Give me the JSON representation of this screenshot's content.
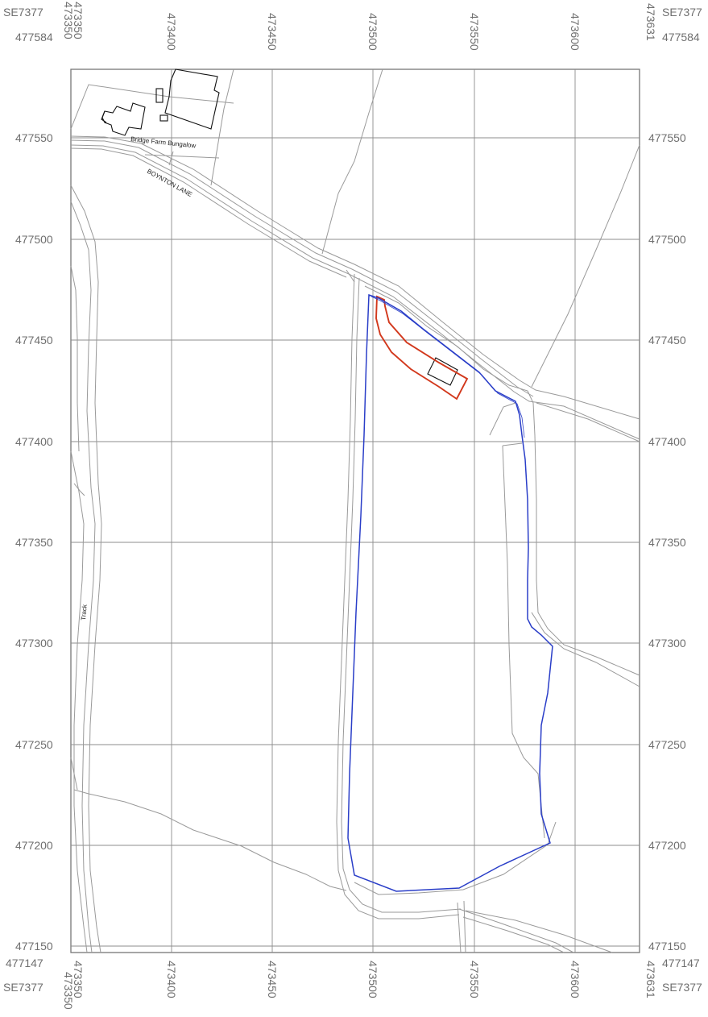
{
  "map": {
    "sheet_ref": "SE7377",
    "corners": {
      "x_min": "473350",
      "x_max": "473631",
      "y_min": "477147",
      "y_max": "477584"
    },
    "x_grid": [
      "473400",
      "473450",
      "473500",
      "473550",
      "473600"
    ],
    "y_grid": [
      "477550",
      "477500",
      "477450",
      "477400",
      "477350",
      "477300",
      "477250",
      "477200",
      "477150"
    ],
    "labels": {
      "building": "Bridge Farm Bungalow",
      "road": "BOYNTON LANE",
      "track": "Track"
    },
    "colors": {
      "frame": "#777777",
      "grid": "#8c8c8c",
      "features": "#999999",
      "buildings": "#111111",
      "site_boundary_red": "#d2381c",
      "ownership_boundary_blue": "#2a3ec8"
    }
  }
}
